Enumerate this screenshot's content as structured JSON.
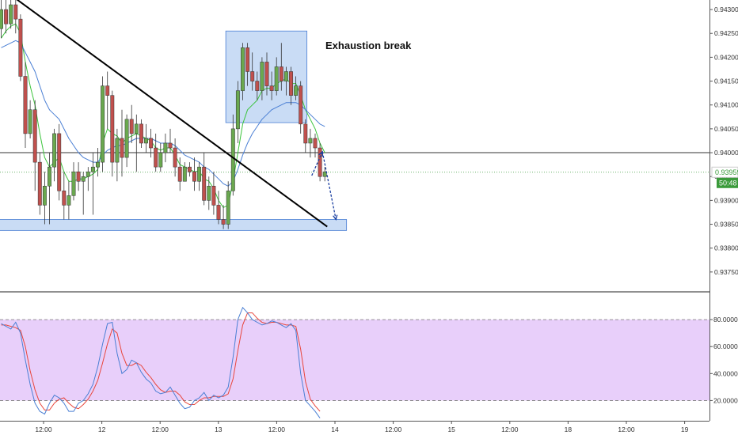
{
  "chart_data": {
    "type": "candlestick",
    "price_axis": {
      "ylim": [
        0.9371,
        0.9432
      ],
      "ticks": [
        "0.94300",
        "0.94250",
        "0.94200",
        "0.94150",
        "0.94100",
        "0.94050",
        "0.94000",
        "0.93950",
        "0.93900",
        "0.93850",
        "0.93800",
        "0.93750"
      ],
      "current_price": "0.93959",
      "countdown": "50:48",
      "up_color": "#6aa84f",
      "down_color": "#c0504d"
    },
    "time_axis": {
      "ticks": [
        "12:00",
        "12",
        "12:00",
        "13",
        "12:00",
        "14",
        "12:00",
        "15",
        "12:00",
        "18",
        "12:00",
        "19"
      ]
    },
    "candles_ohlc": [
      [
        0.9426,
        0.9432,
        0.9424,
        0.943
      ],
      [
        0.943,
        0.9434,
        0.9425,
        0.9427
      ],
      [
        0.9427,
        0.9433,
        0.9426,
        0.9431
      ],
      [
        0.9431,
        0.9432,
        0.9425,
        0.9428
      ],
      [
        0.9428,
        0.9429,
        0.9415,
        0.9416
      ],
      [
        0.9416,
        0.9419,
        0.9401,
        0.9404
      ],
      [
        0.9404,
        0.9411,
        0.9403,
        0.9409
      ],
      [
        0.9409,
        0.9411,
        0.9392,
        0.9398
      ],
      [
        0.9398,
        0.94,
        0.9387,
        0.9389
      ],
      [
        0.9389,
        0.9396,
        0.9385,
        0.9393
      ],
      [
        0.9393,
        0.94,
        0.9385,
        0.9397
      ],
      [
        0.9397,
        0.9405,
        0.9394,
        0.9404
      ],
      [
        0.9404,
        0.9406,
        0.939,
        0.9392
      ],
      [
        0.9392,
        0.9396,
        0.9386,
        0.9389
      ],
      [
        0.9389,
        0.9394,
        0.9386,
        0.9391
      ],
      [
        0.9391,
        0.9398,
        0.939,
        0.9396
      ],
      [
        0.9396,
        0.9398,
        0.9392,
        0.9394
      ],
      [
        0.9394,
        0.9396,
        0.9387,
        0.9395
      ],
      [
        0.9395,
        0.9397,
        0.9392,
        0.9396
      ],
      [
        0.9396,
        0.94,
        0.9387,
        0.9397
      ],
      [
        0.9397,
        0.9401,
        0.9395,
        0.9398
      ],
      [
        0.9398,
        0.9416,
        0.9396,
        0.9414
      ],
      [
        0.9414,
        0.9417,
        0.9405,
        0.9412
      ],
      [
        0.9412,
        0.9413,
        0.9395,
        0.9398
      ],
      [
        0.9398,
        0.9405,
        0.9394,
        0.9403
      ],
      [
        0.9403,
        0.9409,
        0.9395,
        0.9399
      ],
      [
        0.9399,
        0.9408,
        0.9397,
        0.9407
      ],
      [
        0.9407,
        0.941,
        0.9402,
        0.9404
      ],
      [
        0.9404,
        0.9408,
        0.9396,
        0.9406
      ],
      [
        0.9406,
        0.9407,
        0.9401,
        0.9402
      ],
      [
        0.9402,
        0.9406,
        0.94,
        0.9403
      ],
      [
        0.9403,
        0.9405,
        0.9399,
        0.9401
      ],
      [
        0.9401,
        0.9404,
        0.9396,
        0.9397
      ],
      [
        0.9397,
        0.9402,
        0.9396,
        0.94
      ],
      [
        0.94,
        0.9404,
        0.9398,
        0.9402
      ],
      [
        0.9402,
        0.9405,
        0.94,
        0.9401
      ],
      [
        0.9401,
        0.9403,
        0.9395,
        0.9397
      ],
      [
        0.9397,
        0.9399,
        0.9392,
        0.9394
      ],
      [
        0.9394,
        0.9398,
        0.9394,
        0.9397
      ],
      [
        0.9397,
        0.9398,
        0.9395,
        0.9396
      ],
      [
        0.9396,
        0.9399,
        0.9392,
        0.9394
      ],
      [
        0.9394,
        0.9398,
        0.9392,
        0.9397
      ],
      [
        0.9397,
        0.94,
        0.9389,
        0.939
      ],
      [
        0.939,
        0.9395,
        0.9388,
        0.9393
      ],
      [
        0.9393,
        0.9396,
        0.9387,
        0.9389
      ],
      [
        0.9389,
        0.9392,
        0.9385,
        0.9386
      ],
      [
        0.9386,
        0.9389,
        0.9384,
        0.9385
      ],
      [
        0.9385,
        0.9394,
        0.9384,
        0.9392
      ],
      [
        0.9392,
        0.9408,
        0.9391,
        0.9405
      ],
      [
        0.9405,
        0.9415,
        0.9402,
        0.9413
      ],
      [
        0.9413,
        0.9423,
        0.9411,
        0.9422
      ],
      [
        0.9422,
        0.9423,
        0.9414,
        0.9417
      ],
      [
        0.9417,
        0.9421,
        0.9413,
        0.9415
      ],
      [
        0.9415,
        0.9417,
        0.9411,
        0.9413
      ],
      [
        0.9413,
        0.942,
        0.9411,
        0.9419
      ],
      [
        0.9419,
        0.9421,
        0.9412,
        0.9414
      ],
      [
        0.9414,
        0.9417,
        0.9411,
        0.9413
      ],
      [
        0.9413,
        0.942,
        0.9412,
        0.9418
      ],
      [
        0.9418,
        0.9423,
        0.9413,
        0.9415
      ],
      [
        0.9415,
        0.9418,
        0.9412,
        0.9417
      ],
      [
        0.9417,
        0.9418,
        0.941,
        0.9412
      ],
      [
        0.9412,
        0.9416,
        0.9411,
        0.9414
      ],
      [
        0.9414,
        0.9415,
        0.9404,
        0.9406
      ],
      [
        0.9406,
        0.9407,
        0.94,
        0.9402
      ],
      [
        0.9402,
        0.9405,
        0.9399,
        0.9403
      ],
      [
        0.9403,
        0.9404,
        0.9399,
        0.9401
      ],
      [
        0.9401,
        0.9402,
        0.9394,
        0.9395
      ],
      [
        0.9395,
        0.9397,
        0.9394,
        0.9396
      ]
    ],
    "moving_averages": [
      {
        "color": "#3cc43c",
        "values": [
          0.9424,
          0.94255,
          0.94265,
          0.9427,
          0.9425,
          0.9419,
          0.9414,
          0.941,
          0.9404,
          0.9399,
          0.9397,
          0.9398,
          0.9399,
          0.9396,
          0.9394,
          0.9394,
          0.93945,
          0.93945,
          0.9395,
          0.93955,
          0.93965,
          0.9402,
          0.9405,
          0.9404,
          0.94035,
          0.9402,
          0.9403,
          0.94035,
          0.9404,
          0.94035,
          0.9403,
          0.94025,
          0.9401,
          0.94005,
          0.9401,
          0.9401,
          0.93995,
          0.93975,
          0.9397,
          0.93965,
          0.9396,
          0.93962,
          0.93945,
          0.9394,
          0.93925,
          0.939,
          0.93885,
          0.9389,
          0.9394,
          0.94,
          0.9406,
          0.9409,
          0.941,
          0.9411,
          0.9413,
          0.94135,
          0.94135,
          0.94145,
          0.9415,
          0.94155,
          0.94145,
          0.94145,
          0.9412,
          0.9409,
          0.9407,
          0.9405,
          0.9402,
          0.94
        ]
      },
      {
        "color": "#4a7fd4",
        "values": [
          0.9422,
          0.94225,
          0.9423,
          0.94235,
          0.9423,
          0.9421,
          0.9419,
          0.9417,
          0.9414,
          0.9411,
          0.9409,
          0.9408,
          0.9407,
          0.9405,
          0.9403,
          0.94015,
          0.94,
          0.9399,
          0.93985,
          0.9398,
          0.9398,
          0.93995,
          0.94005,
          0.9401,
          0.94015,
          0.94015,
          0.9402,
          0.94025,
          0.9403,
          0.9403,
          0.9403,
          0.9403,
          0.94025,
          0.9402,
          0.9402,
          0.9402,
          0.94015,
          0.94005,
          0.93995,
          0.9399,
          0.93985,
          0.9398,
          0.9397,
          0.93965,
          0.93955,
          0.93945,
          0.93935,
          0.9393,
          0.9394,
          0.93965,
          0.93995,
          0.9402,
          0.9404,
          0.94055,
          0.9407,
          0.9408,
          0.9409,
          0.94095,
          0.941,
          0.94105,
          0.94105,
          0.94105,
          0.941,
          0.9409,
          0.9408,
          0.9407,
          0.9406,
          0.94055
        ]
      }
    ],
    "horizontal_line": 0.94,
    "current_price_value": 0.93959,
    "trendline": {
      "start": [
        -2,
        0.9436
      ],
      "end": [
        67.5,
        0.93845
      ]
    },
    "support_zone": {
      "from": [
        -0.5,
        0.9386
      ],
      "to": [
        71.5,
        0.93837
      ],
      "color": "#c9dcf5"
    },
    "exhaustion_zone": {
      "from": [
        46.5,
        0.94255
      ],
      "to": [
        63.3,
        0.94063
      ],
      "label": "Exhaustion break",
      "color": "#c9dcf5"
    },
    "projection_arrows": [
      {
        "from": [
          64.3,
          0.93952
        ],
        "to": [
          66.5,
          0.94002
        ]
      },
      {
        "from": [
          66.5,
          0.94002
        ],
        "to": [
          69.3,
          0.9386
        ]
      }
    ],
    "oscillator": {
      "ylim": [
        5,
        100
      ],
      "ticks": [
        "80.0000",
        "60.0000",
        "40.0000",
        "20.0000"
      ],
      "overbought": 80,
      "oversold": 20,
      "band_color": "#e8cffa",
      "k_color": "#4a7fd4",
      "d_color": "#e8463c",
      "k_values": [
        77,
        75,
        73,
        78,
        70,
        50,
        32,
        18,
        12,
        10,
        18,
        24,
        22,
        18,
        12,
        12,
        18,
        20,
        25,
        32,
        45,
        62,
        77,
        78,
        55,
        40,
        43,
        50,
        48,
        41,
        36,
        33,
        27,
        25,
        26,
        30,
        24,
        18,
        14,
        15,
        20,
        22,
        26,
        20,
        24,
        22,
        24,
        30,
        52,
        80,
        89,
        85,
        80,
        78,
        76,
        77,
        79,
        78,
        76,
        74,
        77,
        72,
        40,
        20,
        16,
        12,
        7
      ],
      "d_values": [
        76,
        76,
        75,
        74,
        72,
        60,
        42,
        28,
        18,
        13,
        13,
        18,
        21,
        22,
        18,
        15,
        14,
        17,
        21,
        27,
        35,
        48,
        62,
        73,
        70,
        55,
        46,
        46,
        48,
        46,
        41,
        37,
        32,
        28,
        26,
        27,
        27,
        24,
        19,
        17,
        17,
        20,
        22,
        22,
        23,
        23,
        23,
        25,
        36,
        57,
        76,
        85,
        85,
        81,
        78,
        77,
        78,
        78,
        77,
        76,
        76,
        75,
        58,
        34,
        21,
        16,
        12
      ]
    }
  }
}
